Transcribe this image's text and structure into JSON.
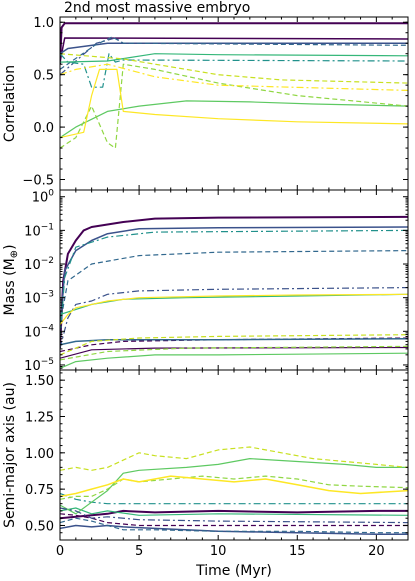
{
  "chart_data": [
    {
      "type": "line",
      "title": "2nd most massive embryo",
      "xlabel": "",
      "ylabel": "Correlation",
      "xlim": [
        0,
        22
      ],
      "ylim": [
        -0.6,
        1.05
      ],
      "xticks": [
        0,
        5,
        10,
        15,
        20
      ],
      "yticks": [
        -0.5,
        0.0,
        0.5,
        1.0
      ],
      "ytick_labels": [
        "−0.5",
        "0.0",
        "0.5",
        "1.0"
      ],
      "grid": false,
      "series": [
        {
          "color": "#440154",
          "style": "solid",
          "width": 2,
          "x": [
            0,
            0.1,
            0.3,
            22
          ],
          "y": [
            0.6,
            0.95,
            0.99,
            0.99
          ]
        },
        {
          "color": "#440154",
          "style": "solid",
          "width": 1.5,
          "x": [
            0,
            0.3,
            22
          ],
          "y": [
            0.62,
            0.85,
            0.84
          ]
        },
        {
          "color": "#3b528b",
          "style": "solid",
          "width": 1.5,
          "x": [
            0,
            0.5,
            3,
            22
          ],
          "y": [
            0.7,
            0.75,
            0.8,
            0.8
          ]
        },
        {
          "color": "#3b528b",
          "style": "dashdot",
          "width": 1.2,
          "x": [
            0,
            2,
            2.3,
            3.5,
            4,
            22
          ],
          "y": [
            0.5,
            0.76,
            0.8,
            0.85,
            0.8,
            0.8
          ]
        },
        {
          "color": "#31688e",
          "style": "dashed",
          "width": 1.2,
          "x": [
            0,
            2.2,
            3.3,
            4,
            22
          ],
          "y": [
            0.55,
            0.78,
            0.86,
            0.8,
            0.78
          ]
        },
        {
          "color": "#21918c",
          "style": "dashdot",
          "width": 1.2,
          "x": [
            0,
            0.5,
            1.5,
            2,
            2.7,
            3.1,
            3.5,
            4,
            22
          ],
          "y": [
            0.7,
            0.62,
            0.6,
            0.38,
            0.38,
            0.7,
            0.62,
            0.64,
            0.63
          ]
        },
        {
          "color": "#35b779",
          "style": "solid",
          "width": 1.2,
          "x": [
            0,
            3,
            6,
            10,
            22
          ],
          "y": [
            0.62,
            0.63,
            0.7,
            0.69,
            0.68
          ]
        },
        {
          "color": "#5ec962",
          "style": "solid",
          "width": 1.2,
          "x": [
            0,
            1,
            3,
            5,
            8,
            12,
            16,
            22
          ],
          "y": [
            -0.1,
            0.0,
            0.15,
            0.2,
            0.25,
            0.24,
            0.22,
            0.2
          ]
        },
        {
          "color": "#90d743",
          "style": "dashed",
          "width": 1.2,
          "x": [
            0,
            1,
            2,
            3,
            3.5,
            4,
            6,
            10,
            15,
            22
          ],
          "y": [
            -0.2,
            -0.1,
            0.2,
            -0.15,
            -0.2,
            0.6,
            0.55,
            0.42,
            0.3,
            0.2
          ]
        },
        {
          "color": "#c8e020",
          "style": "dashed",
          "width": 1.2,
          "x": [
            0,
            4,
            6,
            10,
            14,
            22
          ],
          "y": [
            0.7,
            0.65,
            0.6,
            0.5,
            0.45,
            0.42
          ]
        },
        {
          "color": "#fde725",
          "style": "solid",
          "width": 1.2,
          "x": [
            0,
            1.5,
            2,
            2.5,
            3.6,
            4,
            6,
            10,
            15,
            22
          ],
          "y": [
            -0.1,
            -0.05,
            0.3,
            0.55,
            0.55,
            0.15,
            0.12,
            0.08,
            0.05,
            0.03
          ]
        },
        {
          "color": "#fde725",
          "style": "dashdot",
          "width": 1.2,
          "x": [
            0,
            1,
            3,
            6,
            10,
            22
          ],
          "y": [
            0.5,
            0.55,
            0.6,
            0.48,
            0.4,
            0.35
          ]
        }
      ]
    },
    {
      "type": "line",
      "xlabel": "",
      "ylabel": "Mass (M",
      "ylabel_symbol": "⊕",
      "ylabel_close": ")",
      "yscale": "log",
      "xlim": [
        0,
        22
      ],
      "ylim": [
        -5.15,
        0.2
      ],
      "xticks": [
        0,
        5,
        10,
        15,
        20
      ],
      "ytick_values": [
        0,
        -1,
        -2,
        -3,
        -4,
        -5
      ],
      "ytick_labels": [
        {
          "base": "10",
          "exp": "0"
        },
        {
          "base": "10",
          "exp": "−1"
        },
        {
          "base": "10",
          "exp": "−2"
        },
        {
          "base": "10",
          "exp": "−3"
        },
        {
          "base": "10",
          "exp": "−4"
        },
        {
          "base": "10",
          "exp": "−5"
        }
      ],
      "grid": false,
      "series": [
        {
          "color": "#440154",
          "style": "solid",
          "width": 2,
          "x": [
            0,
            0.2,
            0.5,
            1,
            1.5,
            2,
            4,
            6,
            10,
            22
          ],
          "y": [
            -4.5,
            -2.5,
            -1.7,
            -1.3,
            -1.0,
            -0.9,
            -0.75,
            -0.65,
            -0.62,
            -0.6
          ]
        },
        {
          "color": "#3b528b",
          "style": "solid",
          "width": 1.5,
          "x": [
            0,
            0.3,
            1,
            2,
            3,
            5,
            10,
            22
          ],
          "y": [
            -4,
            -2.2,
            -1.6,
            -1.3,
            -1.1,
            -0.95,
            -0.92,
            -0.9
          ]
        },
        {
          "color": "#31688e",
          "style": "dashed",
          "width": 1.2,
          "x": [
            0,
            0.5,
            2,
            5,
            10,
            22
          ],
          "y": [
            -3.8,
            -2.5,
            -2.0,
            -1.75,
            -1.65,
            -1.6
          ]
        },
        {
          "color": "#21918c",
          "style": "dashdot",
          "width": 1.2,
          "x": [
            0,
            0.3,
            1,
            3,
            6,
            22
          ],
          "y": [
            -4.2,
            -2.4,
            -1.5,
            -1.2,
            -1.05,
            -1.0
          ]
        },
        {
          "color": "#3b528b",
          "style": "dashdot",
          "width": 1.2,
          "x": [
            0,
            0.5,
            1,
            2,
            3,
            5,
            10,
            22
          ],
          "y": [
            -4.5,
            -3.6,
            -3.2,
            -3.1,
            -2.9,
            -2.8,
            -2.75,
            -2.7
          ]
        },
        {
          "color": "#35b779",
          "style": "solid",
          "width": 1.2,
          "x": [
            0,
            2,
            4,
            8,
            15,
            22
          ],
          "y": [
            -3.5,
            -3.2,
            -3.05,
            -3.0,
            -2.95,
            -2.9
          ]
        },
        {
          "color": "#fde725",
          "style": "solid",
          "width": 1.2,
          "x": [
            0,
            0.5,
            1,
            2,
            3,
            5,
            10,
            15,
            22
          ],
          "y": [
            -3.8,
            -3.5,
            -3.3,
            -3.2,
            -3.1,
            -3.0,
            -2.95,
            -2.92,
            -2.9
          ]
        },
        {
          "color": "#440154",
          "style": "dashed",
          "width": 1.2,
          "x": [
            0,
            2,
            4,
            10,
            22
          ],
          "y": [
            -4.6,
            -4.4,
            -4.3,
            -4.25,
            -4.2
          ]
        },
        {
          "color": "#31688e",
          "style": "solid",
          "width": 1.5,
          "x": [
            0,
            1,
            3,
            10,
            22
          ],
          "y": [
            -4.4,
            -4.3,
            -4.25,
            -4.25,
            -4.22
          ]
        },
        {
          "color": "#440154",
          "style": "solid",
          "width": 1.2,
          "x": [
            0,
            2,
            6,
            22
          ],
          "y": [
            -4.8,
            -4.55,
            -4.5,
            -4.48
          ]
        },
        {
          "color": "#c8e020",
          "style": "dashed",
          "width": 1.2,
          "x": [
            0,
            2,
            5,
            10,
            22
          ],
          "y": [
            -4.7,
            -4.3,
            -4.2,
            -4.15,
            -4.1
          ]
        },
        {
          "color": "#90d743",
          "style": "dashed",
          "width": 1.2,
          "x": [
            0,
            3,
            8,
            22
          ],
          "y": [
            -4.85,
            -4.6,
            -4.5,
            -4.45
          ]
        },
        {
          "color": "#5ec962",
          "style": "solid",
          "width": 1.2,
          "x": [
            0,
            1,
            3,
            6,
            10,
            15,
            22
          ],
          "y": [
            -5.1,
            -4.9,
            -4.8,
            -4.7,
            -4.7,
            -4.68,
            -4.65
          ]
        }
      ]
    },
    {
      "type": "line",
      "xlabel": "Time (Myr)",
      "ylabel": "Semi-major axis (au)",
      "xlim": [
        0,
        22
      ],
      "ylim": [
        0.4,
        1.57
      ],
      "xticks": [
        0,
        5,
        10,
        15,
        20
      ],
      "yticks": [
        0.5,
        0.75,
        1.0,
        1.25,
        1.5
      ],
      "ytick_labels": [
        "0.50",
        "0.75",
        "1.00",
        "1.25",
        "1.50"
      ],
      "grid": false,
      "series": [
        {
          "color": "#440154",
          "style": "solid",
          "width": 2,
          "x": [
            0,
            1,
            2,
            3,
            4,
            6,
            10,
            15,
            20,
            21.5,
            22
          ],
          "y": [
            0.55,
            0.56,
            0.57,
            0.58,
            0.6,
            0.59,
            0.6,
            0.59,
            0.6,
            0.6,
            0.6
          ]
        },
        {
          "color": "#3b528b",
          "style": "solid",
          "width": 1.5,
          "x": [
            0,
            1,
            2,
            3,
            4,
            6,
            10,
            15,
            20,
            22
          ],
          "y": [
            0.48,
            0.5,
            0.49,
            0.5,
            0.49,
            0.48,
            0.46,
            0.45,
            0.44,
            0.44
          ]
        },
        {
          "color": "#31688e",
          "style": "dashed",
          "width": 1.2,
          "x": [
            0,
            1,
            2,
            3,
            4,
            6,
            10,
            15,
            20,
            22
          ],
          "y": [
            0.52,
            0.55,
            0.53,
            0.5,
            0.47,
            0.47,
            0.46,
            0.46,
            0.45,
            0.45
          ]
        },
        {
          "color": "#440154",
          "style": "dashed",
          "width": 1.2,
          "x": [
            0,
            1,
            2,
            3,
            5,
            10,
            22
          ],
          "y": [
            0.58,
            0.57,
            0.55,
            0.52,
            0.5,
            0.5,
            0.5
          ]
        },
        {
          "color": "#21918c",
          "style": "dashdot",
          "width": 1.2,
          "x": [
            0,
            1,
            2,
            3,
            5,
            10,
            22
          ],
          "y": [
            0.72,
            0.68,
            0.66,
            0.65,
            0.65,
            0.65,
            0.65
          ]
        },
        {
          "color": "#35b779",
          "style": "solid",
          "width": 1.2,
          "x": [
            0,
            1,
            2,
            3,
            5,
            10,
            22
          ],
          "y": [
            0.6,
            0.62,
            0.58,
            0.6,
            0.57,
            0.58,
            0.57
          ]
        },
        {
          "color": "#5ec962",
          "style": "solid",
          "width": 1.2,
          "x": [
            0,
            1,
            2,
            3,
            4,
            5,
            8,
            10,
            12,
            15,
            18,
            20,
            22
          ],
          "y": [
            0.64,
            0.58,
            0.66,
            0.74,
            0.86,
            0.88,
            0.9,
            0.92,
            0.96,
            0.94,
            0.92,
            0.9,
            0.9
          ]
        },
        {
          "color": "#90d743",
          "style": "dashed",
          "width": 1.2,
          "x": [
            0,
            1,
            2,
            3,
            4,
            5,
            7,
            9,
            11,
            13,
            15,
            17,
            19,
            22
          ],
          "y": [
            0.68,
            0.7,
            0.7,
            0.75,
            0.82,
            0.8,
            0.82,
            0.84,
            0.82,
            0.84,
            0.82,
            0.78,
            0.77,
            0.76
          ]
        },
        {
          "color": "#c8e020",
          "style": "dashed",
          "width": 1.2,
          "x": [
            0,
            1,
            2,
            3,
            4,
            5,
            6,
            8,
            10,
            12,
            14,
            16,
            18,
            20,
            22
          ],
          "y": [
            0.88,
            0.9,
            0.88,
            0.9,
            0.95,
            1.0,
            0.98,
            0.96,
            1.02,
            1.04,
            1.0,
            0.96,
            0.94,
            0.92,
            0.9
          ]
        },
        {
          "color": "#fde725",
          "style": "solid",
          "width": 1.5,
          "x": [
            0,
            1,
            2,
            3,
            4,
            5,
            7,
            9,
            11,
            13,
            15,
            17,
            19,
            22
          ],
          "y": [
            0.7,
            0.72,
            0.75,
            0.78,
            0.82,
            0.8,
            0.84,
            0.82,
            0.8,
            0.82,
            0.78,
            0.74,
            0.72,
            0.74
          ]
        },
        {
          "color": "#3b528b",
          "style": "dashdot",
          "width": 1.2,
          "x": [
            0,
            1,
            2,
            3,
            5,
            10,
            22
          ],
          "y": [
            0.62,
            0.6,
            0.55,
            0.56,
            0.54,
            0.53,
            0.52
          ]
        }
      ]
    }
  ]
}
